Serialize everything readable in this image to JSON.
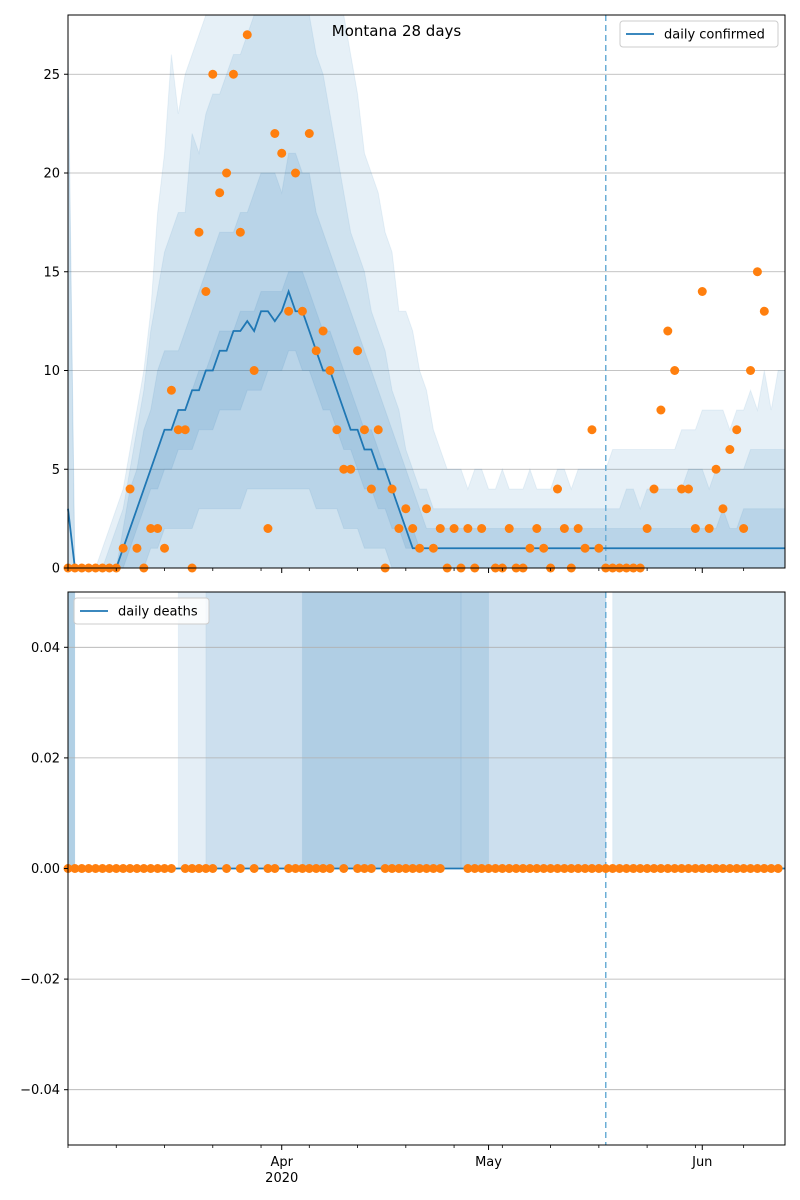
{
  "chart_data": [
    {
      "type": "line",
      "title": "Montana 28 days",
      "legend": {
        "entries": [
          "daily confirmed"
        ],
        "placement": "top-right"
      },
      "grid": "y",
      "ylim": [
        0,
        28
      ],
      "yticks": [
        0,
        5,
        10,
        15,
        20,
        25
      ],
      "x_start": "2020-03-01",
      "x_end": "2020-06-13",
      "xticks": [
        {
          "date": "2020-04-01",
          "label": "Apr",
          "sublabel": "2020"
        },
        {
          "date": "2020-05-01",
          "label": "May"
        },
        {
          "date": "2020-06-01",
          "label": "Jun"
        }
      ],
      "vline_date": "2020-05-18",
      "series": [
        {
          "name": "daily confirmed",
          "kind": "line",
          "x_start": "2020-03-01",
          "values": [
            3,
            0,
            0,
            0,
            0,
            0,
            0,
            0,
            1,
            2,
            3,
            4,
            5,
            6,
            7,
            7,
            8,
            8,
            9,
            9,
            10,
            10,
            11,
            11,
            12,
            12,
            12.5,
            12,
            13,
            13,
            12.5,
            13,
            14,
            13,
            13,
            12,
            11,
            10,
            10,
            9,
            8,
            7,
            7,
            6,
            6,
            5,
            5,
            4,
            3,
            2,
            1,
            1,
            1,
            1,
            1,
            1,
            1,
            1,
            1,
            1,
            1,
            1,
            1,
            1,
            1,
            1,
            1,
            1,
            1,
            1,
            1,
            1,
            1,
            1,
            1,
            1,
            1,
            1,
            1,
            1,
            1,
            1,
            1,
            1,
            1,
            1,
            1,
            1,
            1,
            1,
            1,
            1,
            1,
            1,
            1,
            1,
            1,
            1,
            1,
            1,
            1,
            1,
            1,
            1,
            1
          ]
        },
        {
          "kind": "scatter",
          "x_start": "2020-03-01",
          "values": [
            0,
            0,
            0,
            0,
            0,
            0,
            0,
            0,
            1,
            4,
            1,
            0,
            2,
            2,
            1,
            9,
            7,
            7,
            0,
            17,
            14,
            25,
            19,
            20,
            25,
            17,
            27,
            10,
            null,
            2,
            22,
            21,
            13,
            20,
            13,
            22,
            11,
            12,
            10,
            7,
            5,
            5,
            11,
            7,
            4,
            7,
            0,
            4,
            2,
            3,
            2,
            1,
            3,
            1,
            2,
            0,
            2,
            0,
            2,
            0,
            2,
            null,
            0,
            0,
            2,
            0,
            0,
            1,
            2,
            1,
            0,
            4,
            2,
            0,
            2,
            1,
            7,
            1,
            0,
            0,
            0,
            0,
            0,
            0,
            2,
            4,
            8,
            12,
            10,
            4,
            4,
            2,
            14,
            2,
            5,
            3,
            6,
            7,
            2,
            10,
            15,
            13
          ]
        }
      ],
      "bands": [
        {
          "upper": [
            26,
            0,
            0,
            0,
            0,
            0,
            1,
            2,
            3,
            5,
            7,
            9,
            12,
            14,
            16,
            17,
            18,
            18,
            22,
            21,
            23,
            24,
            24,
            25,
            26,
            26,
            27,
            28,
            28,
            28,
            28,
            28,
            28,
            28,
            28,
            28,
            26,
            25,
            23,
            21,
            19,
            17,
            16,
            15,
            13,
            12,
            11,
            9,
            8,
            6,
            5,
            4,
            4,
            3,
            3,
            3,
            3,
            3,
            3,
            3,
            3,
            3,
            3,
            3,
            3,
            3,
            3,
            3,
            3,
            3,
            3,
            3,
            3,
            3,
            3,
            3,
            3,
            3,
            3,
            3,
            3,
            4,
            4,
            3,
            4,
            4,
            4,
            4,
            4,
            4,
            5,
            5,
            5,
            4,
            5,
            5,
            5,
            5,
            5,
            6,
            6,
            6,
            6,
            6,
            6
          ],
          "lower": [
            0,
            0,
            0,
            0,
            0,
            0,
            0,
            0,
            0,
            0,
            0,
            0,
            0,
            0,
            0,
            0,
            0,
            0,
            0,
            0,
            0,
            0,
            0,
            0,
            0,
            0,
            0,
            0,
            0,
            0,
            0,
            0,
            0,
            0,
            0,
            0,
            0,
            0,
            0,
            0,
            0,
            0,
            0,
            0,
            0,
            0,
            0,
            0,
            0,
            0,
            0,
            0,
            0,
            0,
            0,
            0,
            0,
            0,
            0,
            0,
            0,
            0,
            0,
            0,
            0,
            0,
            0,
            0,
            0,
            0,
            0,
            0,
            0,
            0,
            0,
            0,
            0,
            0,
            0,
            0,
            0,
            0,
            0,
            0,
            0,
            0,
            0,
            0,
            0,
            0,
            0,
            0,
            0,
            0,
            0,
            0,
            0,
            0,
            0,
            0,
            0,
            0,
            0,
            0,
            0
          ]
        },
        {
          "upper": [
            27,
            0,
            0,
            0,
            0,
            1,
            2,
            3,
            4,
            6,
            8,
            10,
            13,
            18,
            21,
            26,
            23,
            25,
            26,
            27,
            28,
            28,
            28,
            28,
            28,
            28,
            28,
            28,
            28,
            28,
            28,
            28,
            28,
            28,
            28,
            28,
            28,
            28,
            28,
            28,
            28,
            26,
            24,
            21,
            20,
            19,
            17,
            16,
            13,
            13,
            12,
            10,
            9,
            7,
            6,
            5,
            5,
            5,
            4,
            5,
            5,
            4,
            4,
            5,
            4,
            4,
            4,
            5,
            4,
            4,
            4,
            5,
            5,
            4,
            5,
            5,
            5,
            5,
            5,
            6,
            6,
            6,
            6,
            6,
            6,
            6,
            6,
            6,
            6,
            7,
            7,
            7,
            8,
            8,
            8,
            8,
            7,
            8,
            8,
            9,
            8,
            10,
            8,
            10,
            10
          ],
          "lower": [
            0,
            0,
            0,
            0,
            0,
            0,
            0,
            0,
            0,
            0,
            0,
            0,
            0,
            0,
            0,
            0,
            0,
            0,
            0,
            0,
            0,
            0,
            0,
            0,
            0,
            0,
            0,
            0,
            0,
            0,
            0,
            0,
            0,
            0,
            0,
            0,
            0,
            0,
            0,
            0,
            0,
            0,
            0,
            0,
            0,
            0,
            0,
            0,
            0,
            0,
            0,
            0,
            0,
            0,
            0,
            0,
            0,
            0,
            0,
            0,
            0,
            0,
            0,
            0,
            0,
            0,
            0,
            0,
            0,
            0,
            0,
            0,
            0,
            0,
            0,
            0,
            0,
            0,
            0,
            0,
            0,
            0,
            0,
            0,
            0,
            0,
            0,
            0,
            0,
            0,
            0,
            0,
            0,
            0,
            0,
            0,
            0,
            0,
            0,
            0,
            0,
            0,
            0,
            0,
            0
          ]
        },
        {
          "upper": [
            0,
            0,
            0,
            0,
            0,
            0,
            0,
            0,
            2,
            4,
            5,
            7,
            8,
            10,
            11,
            11,
            11,
            12,
            13,
            14,
            15,
            16,
            17,
            17,
            17,
            18,
            18,
            19,
            20,
            20,
            20,
            19,
            21,
            21,
            20,
            20,
            18,
            17,
            16,
            15,
            14,
            13,
            12,
            11,
            10,
            9,
            8,
            7,
            6,
            5,
            4,
            3,
            2,
            2,
            2,
            2,
            2,
            2,
            2,
            2,
            2,
            2,
            2,
            2,
            2,
            2,
            2,
            2,
            2,
            2,
            2,
            2,
            2,
            2,
            2,
            2,
            2,
            2,
            2,
            2,
            2,
            2,
            2,
            2,
            2,
            2,
            2,
            2,
            2,
            2,
            2,
            2,
            2,
            2,
            2,
            3,
            2,
            2,
            3,
            3,
            3,
            3,
            3,
            3,
            3
          ],
          "lower": [
            0,
            0,
            0,
            0,
            0,
            0,
            0,
            0,
            0,
            0,
            0,
            0,
            1,
            1,
            2,
            2,
            2,
            2,
            2,
            3,
            3,
            3,
            3,
            3,
            3,
            3,
            4,
            4,
            4,
            4,
            4,
            4,
            4,
            4,
            4,
            4,
            3,
            3,
            3,
            3,
            2,
            2,
            2,
            1,
            1,
            1,
            1,
            0,
            0,
            0,
            0,
            0,
            0,
            0,
            0,
            0,
            0,
            0,
            0,
            0,
            0,
            0,
            0,
            0,
            0,
            0,
            0,
            0,
            0,
            0,
            0,
            0,
            0,
            0,
            0,
            0,
            0,
            0,
            0,
            0,
            0,
            0,
            0,
            0,
            0,
            0,
            0,
            0,
            0,
            0,
            0,
            0,
            0,
            0,
            0,
            0,
            0,
            0,
            0,
            0,
            0,
            0,
            0,
            0,
            0
          ]
        },
        {
          "upper": [
            0,
            0,
            0,
            0,
            0,
            0,
            0,
            0,
            1,
            2,
            3,
            4,
            5,
            6,
            7,
            7,
            8,
            8,
            9,
            10,
            10,
            11,
            12,
            12,
            12,
            13,
            13,
            13,
            14,
            14,
            14,
            14,
            15,
            15,
            15,
            14,
            13,
            12,
            12,
            11,
            10,
            9,
            8,
            7,
            7,
            6,
            5,
            4,
            3,
            2,
            2,
            1,
            1,
            1,
            1,
            1,
            1,
            1,
            1,
            1,
            1,
            1,
            1,
            1,
            1,
            1,
            1,
            1,
            1,
            1,
            1,
            1,
            1,
            1,
            1,
            1,
            1,
            1,
            1,
            1,
            1,
            1,
            1,
            1,
            1,
            1,
            1,
            1,
            1,
            1,
            1,
            1,
            1,
            1,
            1,
            1,
            1,
            1,
            1,
            1,
            1,
            1,
            1,
            1,
            1
          ],
          "lower": [
            0,
            0,
            0,
            0,
            0,
            0,
            0,
            0,
            0,
            1,
            2,
            3,
            4,
            4,
            5,
            5,
            6,
            6,
            6,
            7,
            7,
            7,
            8,
            8,
            8,
            8,
            9,
            9,
            9,
            10,
            10,
            10,
            11,
            11,
            10,
            10,
            9,
            8,
            8,
            7,
            6,
            6,
            5,
            4,
            4,
            3,
            3,
            2,
            2,
            1,
            1,
            1,
            1,
            1,
            1,
            1,
            1,
            1,
            1,
            1,
            1,
            1,
            1,
            1,
            1,
            1,
            1,
            1,
            1,
            1,
            1,
            1,
            1,
            1,
            1,
            1,
            1,
            1,
            1,
            1,
            1,
            1,
            1,
            1,
            1,
            1,
            1,
            1,
            1,
            1,
            1,
            1,
            1,
            1,
            1,
            1,
            1,
            1,
            1,
            1,
            1,
            1,
            1,
            1,
            1
          ]
        }
      ]
    },
    {
      "type": "line",
      "legend": {
        "entries": [
          "daily deaths"
        ],
        "placement": "top-left"
      },
      "grid": "y",
      "ylim": [
        -0.05,
        0.05
      ],
      "yticks": [
        -0.04,
        -0.02,
        0.0,
        0.02,
        0.04
      ],
      "ytick_labels": [
        "−0.04",
        "−0.02",
        "0.00",
        "0.02",
        "0.04"
      ],
      "x_start": "2020-03-01",
      "x_end": "2020-06-13",
      "vline_date": "2020-05-18",
      "series": [
        {
          "name": "daily deaths",
          "kind": "line",
          "value": 0
        },
        {
          "kind": "scatter",
          "value": 0,
          "dates_start": "2020-03-01",
          "count": 104,
          "gaps": [
            16,
            22,
            24,
            26,
            28,
            31,
            39,
            41,
            45,
            55,
            56,
            57
          ]
        }
      ],
      "band_spans": [
        {
          "from": "2020-03-01",
          "to": "2020-03-02",
          "opacity": 0.35
        },
        {
          "from": "2020-03-17",
          "to": "2020-05-18",
          "opacity": 0.12
        },
        {
          "from": "2020-03-21",
          "to": "2020-05-18",
          "opacity": 0.12
        },
        {
          "from": "2020-04-04",
          "to": "2020-04-27",
          "opacity": 0.16
        },
        {
          "from": "2020-04-27",
          "to": "2020-05-01",
          "opacity": 0.14
        },
        {
          "from": "2020-05-19",
          "to": "2020-06-13",
          "opacity": 0.14
        }
      ]
    }
  ]
}
